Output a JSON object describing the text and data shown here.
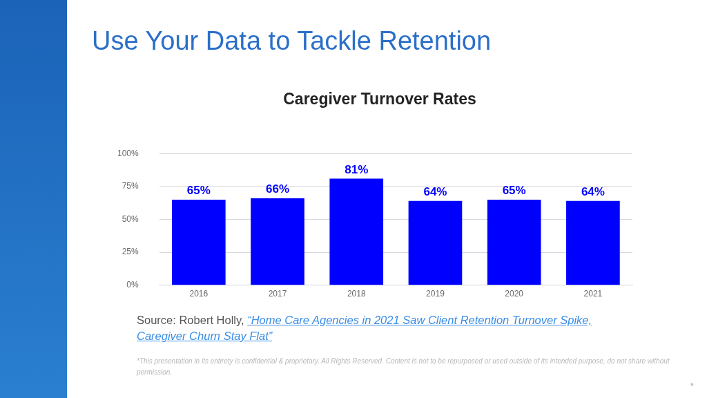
{
  "chart_data": {
    "type": "bar",
    "title": "Use Your Data to Tackle Retention",
    "subtitle": "Caregiver Turnover Rates",
    "categories": [
      "2016",
      "2017",
      "2018",
      "2019",
      "2020",
      "2021"
    ],
    "values": [
      65,
      66,
      81,
      64,
      65,
      64
    ],
    "value_labels": [
      "65%",
      "66%",
      "81%",
      "64%",
      "65%",
      "64%"
    ],
    "color": "#0000ff",
    "ylim": [
      0,
      100
    ],
    "yticks": [
      {
        "value": 0,
        "label": "0%"
      },
      {
        "value": 25,
        "label": "25%"
      },
      {
        "value": 50,
        "label": "50%"
      },
      {
        "value": 75,
        "label": "75%"
      },
      {
        "value": 100,
        "label": "100%"
      }
    ],
    "grid": "y",
    "legend": false,
    "annotations": [
      "Source: Robert Holly,",
      "“Home Care Agencies in 2021 Saw Client Retention Turnover Spike, Caregiver Churn Stay Flat”",
      "*This presentation in its entirety is confidential & proprietary. All Rights Reserved. Content is not to be repurposed or used outside of its intended purpose, do not share without permission.",
      "9"
    ]
  }
}
